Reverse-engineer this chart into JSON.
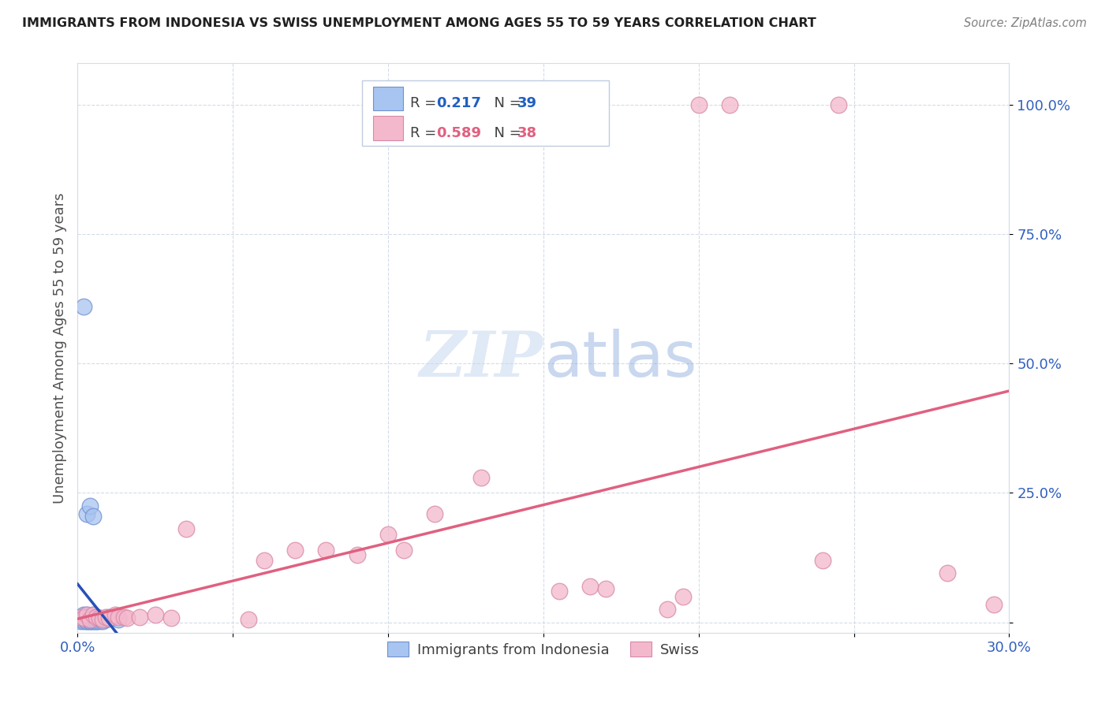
{
  "title": "IMMIGRANTS FROM INDONESIA VS SWISS UNEMPLOYMENT AMONG AGES 55 TO 59 YEARS CORRELATION CHART",
  "source": "Source: ZipAtlas.com",
  "ylabel": "Unemployment Among Ages 55 to 59 years",
  "xlim": [
    0.0,
    0.3
  ],
  "ylim": [
    -0.02,
    1.08
  ],
  "blue_R": 0.217,
  "blue_N": 39,
  "pink_R": 0.589,
  "pink_N": 38,
  "blue_color": "#a8c4f0",
  "pink_color": "#f4b8cc",
  "blue_edge_color": "#7090d0",
  "pink_edge_color": "#d888a8",
  "blue_line_color": "#2850b8",
  "blue_dash_color": "#90b8e0",
  "pink_line_color": "#e06080",
  "legend_label_1": "Immigrants from Indonesia",
  "legend_label_2": "Swiss",
  "R_N_text_color": "#404040",
  "R_val_color_blue": "#2060c0",
  "N_val_color_blue": "#2060c0",
  "R_val_color_pink": "#e06080",
  "N_val_color_pink": "#e06080",
  "axis_label_color": "#3060c0",
  "title_color": "#202020",
  "source_color": "#808080",
  "grid_color": "#d4dce8",
  "blue_scatter_x": [
    0.001,
    0.001,
    0.001,
    0.002,
    0.002,
    0.002,
    0.002,
    0.003,
    0.003,
    0.003,
    0.003,
    0.003,
    0.003,
    0.004,
    0.004,
    0.004,
    0.004,
    0.005,
    0.005,
    0.005,
    0.005,
    0.005,
    0.006,
    0.006,
    0.006,
    0.006,
    0.007,
    0.007,
    0.007,
    0.008,
    0.008,
    0.009,
    0.01,
    0.011,
    0.013,
    0.003,
    0.004,
    0.005,
    0.002
  ],
  "blue_scatter_y": [
    0.005,
    0.01,
    0.003,
    0.005,
    0.01,
    0.015,
    0.003,
    0.005,
    0.01,
    0.015,
    0.003,
    0.008,
    0.002,
    0.005,
    0.01,
    0.003,
    0.002,
    0.005,
    0.01,
    0.015,
    0.003,
    0.002,
    0.005,
    0.01,
    0.003,
    0.002,
    0.008,
    0.005,
    0.003,
    0.005,
    0.003,
    0.005,
    0.01,
    0.008,
    0.005,
    0.21,
    0.225,
    0.205,
    0.61
  ],
  "pink_scatter_x": [
    0.001,
    0.002,
    0.003,
    0.004,
    0.005,
    0.006,
    0.007,
    0.008,
    0.009,
    0.01,
    0.012,
    0.013,
    0.015,
    0.016,
    0.02,
    0.025,
    0.03,
    0.035,
    0.055,
    0.06,
    0.07,
    0.08,
    0.09,
    0.1,
    0.105,
    0.115,
    0.13,
    0.155,
    0.165,
    0.195,
    0.2,
    0.21,
    0.245,
    0.28,
    0.295,
    0.17,
    0.24,
    0.19
  ],
  "pink_scatter_y": [
    0.01,
    0.008,
    0.015,
    0.005,
    0.015,
    0.01,
    0.008,
    0.005,
    0.01,
    0.008,
    0.015,
    0.01,
    0.01,
    0.008,
    0.01,
    0.015,
    0.008,
    0.18,
    0.005,
    0.12,
    0.14,
    0.14,
    0.13,
    0.17,
    0.14,
    0.21,
    0.28,
    0.06,
    0.07,
    0.05,
    1.0,
    1.0,
    1.0,
    0.095,
    0.035,
    0.065,
    0.12,
    0.025
  ]
}
